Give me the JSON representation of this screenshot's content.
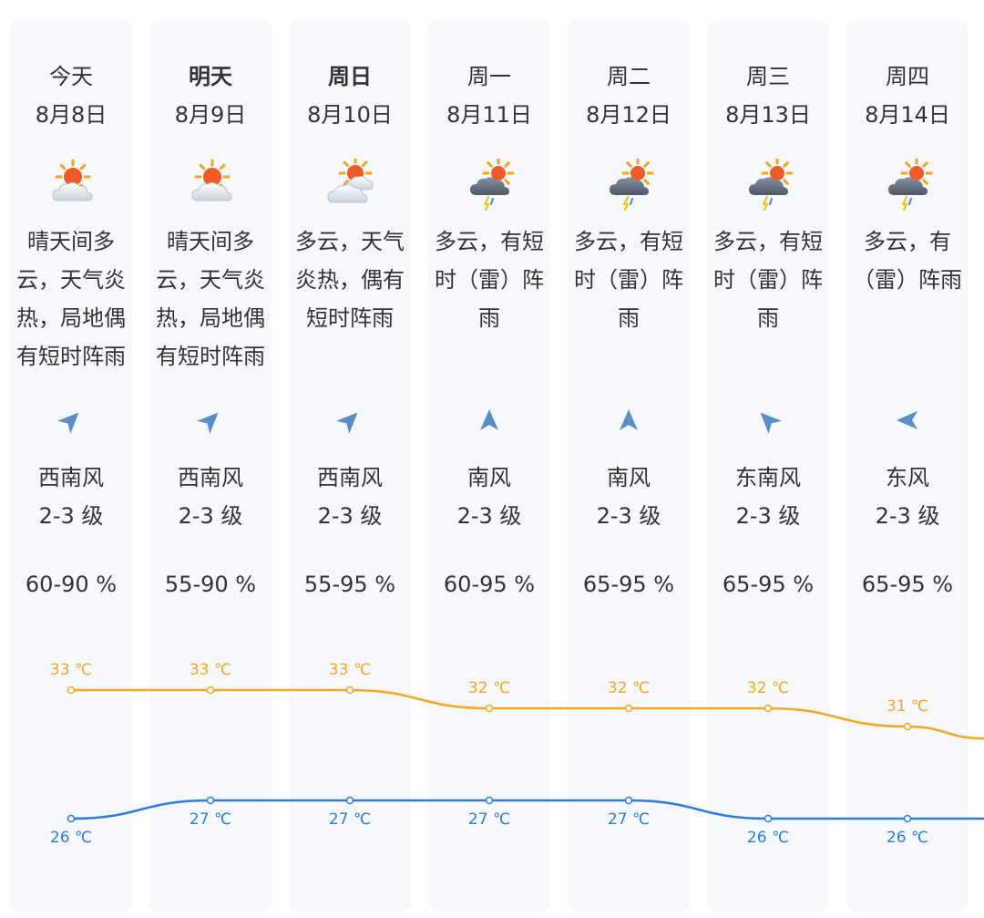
{
  "colors": {
    "high": "#f5a623",
    "low": "#2a7de1",
    "column_bg": "#f6f8fc",
    "wind_icon": "#5b8ec7"
  },
  "days": [
    {
      "name": "今天",
      "date": "8月8日",
      "bold": false,
      "icon": "sun-cloud-icon",
      "desc": "晴天间多云，天气炎热，局地偶有短时阵雨",
      "wind_icon_name": "wind-direction-southwest-icon",
      "wind_rotate": 45,
      "wind_dir": "西南风",
      "wind_level": "2-3 级",
      "humidity": "60-90 %",
      "high": 33,
      "low": 26,
      "high_label": "33 ℃",
      "low_label": "26 ℃"
    },
    {
      "name": "明天",
      "date": "8月9日",
      "bold": true,
      "icon": "sun-cloud-icon",
      "desc": "晴天间多云，天气炎热，局地偶有短时阵雨",
      "wind_icon_name": "wind-direction-southwest-icon",
      "wind_rotate": 45,
      "wind_dir": "西南风",
      "wind_level": "2-3 级",
      "humidity": "55-90 %",
      "high": 33,
      "low": 27,
      "high_label": "33 ℃",
      "low_label": "27 ℃"
    },
    {
      "name": "周日",
      "date": "8月10日",
      "bold": true,
      "icon": "cloudy-sun-icon",
      "desc": "多云，天气炎热，偶有短时阵雨",
      "wind_icon_name": "wind-direction-southwest-icon",
      "wind_rotate": 45,
      "wind_dir": "西南风",
      "wind_level": "2-3 级",
      "humidity": "55-95 %",
      "high": 33,
      "low": 27,
      "high_label": "33 ℃",
      "low_label": "27 ℃"
    },
    {
      "name": "周一",
      "date": "8月11日",
      "bold": false,
      "icon": "thunder-rain-icon",
      "desc": "多云，有短时（雷）阵雨",
      "wind_icon_name": "wind-direction-south-icon",
      "wind_rotate": 0,
      "wind_dir": "南风",
      "wind_level": "2-3 级",
      "humidity": "60-95 %",
      "high": 32,
      "low": 27,
      "high_label": "32 ℃",
      "low_label": "27 ℃"
    },
    {
      "name": "周二",
      "date": "8月12日",
      "bold": false,
      "icon": "thunder-rain-icon",
      "desc": "多云，有短时（雷）阵雨",
      "wind_icon_name": "wind-direction-south-icon",
      "wind_rotate": 0,
      "wind_dir": "南风",
      "wind_level": "2-3 级",
      "humidity": "65-95 %",
      "high": 32,
      "low": 27,
      "high_label": "32 ℃",
      "low_label": "27 ℃"
    },
    {
      "name": "周三",
      "date": "8月13日",
      "bold": false,
      "icon": "thunder-rain-icon",
      "desc": "多云，有短时（雷）阵雨",
      "wind_icon_name": "wind-direction-southeast-icon",
      "wind_rotate": -45,
      "wind_dir": "东南风",
      "wind_level": "2-3 级",
      "humidity": "65-95 %",
      "high": 32,
      "low": 26,
      "high_label": "32 ℃",
      "low_label": "26 ℃"
    },
    {
      "name": "周四",
      "date": "8月14日",
      "bold": false,
      "icon": "thunder-rain-icon",
      "desc": "多云，有（雷）阵雨",
      "wind_icon_name": "wind-direction-east-icon",
      "wind_rotate": -90,
      "wind_dir": "东风",
      "wind_level": "2-3 级",
      "humidity": "65-95 %",
      "high": 31,
      "low": 26,
      "high_label": "31 ℃",
      "low_label": "26 ℃"
    }
  ]
}
